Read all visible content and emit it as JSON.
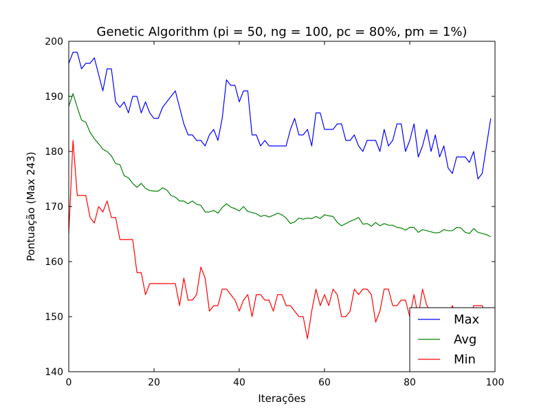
{
  "chart_data": {
    "type": "line",
    "title": "Genetic Algorithm (pi = 50, ng = 100, pc = 80%, pm = 1%)",
    "xlabel": "Iterações",
    "ylabel": "Pontuação (Max 243)",
    "xlim": [
      0,
      100
    ],
    "ylim": [
      140,
      200
    ],
    "xticks": [
      "0",
      "20",
      "40",
      "60",
      "80",
      "100"
    ],
    "yticks": [
      "140",
      "150",
      "160",
      "170",
      "180",
      "190",
      "200"
    ],
    "grid": false,
    "legend": "bottom-right",
    "x": [
      0,
      1,
      2,
      3,
      4,
      5,
      6,
      7,
      8,
      9,
      10,
      11,
      12,
      13,
      14,
      15,
      16,
      17,
      18,
      19,
      20,
      21,
      22,
      23,
      24,
      25,
      26,
      27,
      28,
      29,
      30,
      31,
      32,
      33,
      34,
      35,
      36,
      37,
      38,
      39,
      40,
      41,
      42,
      43,
      44,
      45,
      46,
      47,
      48,
      49,
      50,
      51,
      52,
      53,
      54,
      55,
      56,
      57,
      58,
      59,
      60,
      61,
      62,
      63,
      64,
      65,
      66,
      67,
      68,
      69,
      70,
      71,
      72,
      73,
      74,
      75,
      76,
      77,
      78,
      79,
      80,
      81,
      82,
      83,
      84,
      85,
      86,
      87,
      88,
      89,
      90,
      91,
      92,
      93,
      94,
      95,
      96,
      97,
      98,
      99
    ],
    "series": [
      {
        "name": "Max",
        "color": "#0000ff",
        "values": [
          196,
          198,
          198,
          195,
          196,
          196,
          197,
          194,
          191,
          195,
          195,
          189,
          188,
          189,
          187,
          190,
          190,
          187,
          189,
          187,
          186,
          186,
          188,
          189,
          190,
          191,
          188,
          185,
          183,
          183,
          182,
          182,
          181,
          183,
          184,
          182,
          186,
          193,
          192,
          192,
          189,
          191,
          191,
          183,
          183,
          181,
          182,
          181,
          181,
          181,
          181,
          181,
          184,
          186,
          183,
          183,
          184,
          181,
          187,
          187,
          184,
          184,
          184,
          185,
          185,
          182,
          182,
          183,
          181,
          180,
          182,
          182,
          182,
          180,
          184,
          181,
          182,
          185,
          185,
          180,
          182,
          185,
          179,
          181,
          184,
          180,
          183,
          179,
          181,
          177,
          176,
          179,
          179,
          179,
          178,
          180,
          175,
          176,
          181,
          186
        ]
      },
      {
        "name": "Avg",
        "color": "#008000",
        "values": [
          188.2,
          190.5,
          188,
          185.7,
          185.3,
          183.5,
          182.3,
          181.4,
          180.4,
          180,
          179.2,
          177.8,
          177.6,
          175.6,
          175.2,
          174.2,
          173.5,
          174.2,
          173.3,
          172.9,
          172.8,
          172.8,
          173.4,
          173.0,
          172,
          171.7,
          171,
          171,
          170.5,
          171,
          170.4,
          170.2,
          169,
          169,
          169.3,
          168.8,
          169.8,
          170.5,
          169.9,
          169.6,
          169.2,
          170,
          169.1,
          168.9,
          168.7,
          168.2,
          168.4,
          168.1,
          168.4,
          168.8,
          168.5,
          167.9,
          166.9,
          167.2,
          167.9,
          167.7,
          167.9,
          167.8,
          168.2,
          167.8,
          168.5,
          168.3,
          168.2,
          167.1,
          166.5,
          166.9,
          167.3,
          167.6,
          168.0,
          166.8,
          166.9,
          166.4,
          167.1,
          166.5,
          166.9,
          166.6,
          166.6,
          166.2,
          166.1,
          165.7,
          166.2,
          166.2,
          165.3,
          165.8,
          165.6,
          165.4,
          165.2,
          165.3,
          165.8,
          165.6,
          165.6,
          166.2,
          166.1,
          165.3,
          165.1,
          166.0,
          165.3,
          165.1,
          164.9,
          164.5
        ]
      },
      {
        "name": "Min",
        "color": "#ff0000",
        "values": [
          165,
          182,
          172,
          172,
          172,
          168,
          167,
          170,
          169,
          171,
          168,
          168,
          164,
          164,
          164,
          164,
          158,
          158,
          154,
          156,
          156,
          156,
          156,
          156,
          156,
          156,
          152,
          157,
          153,
          153,
          154,
          159,
          157,
          151,
          152,
          152,
          155,
          155,
          154,
          153,
          151,
          153,
          154,
          150,
          154,
          154,
          153,
          153,
          151,
          154,
          154,
          152,
          152,
          151,
          150,
          150,
          146,
          151,
          155,
          152,
          154,
          152,
          155,
          154,
          150,
          150,
          151,
          155,
          154,
          155,
          155,
          154,
          149,
          151,
          155,
          155,
          152,
          152,
          153,
          153,
          150,
          154,
          150,
          155,
          152,
          151,
          150,
          151,
          151,
          150,
          152,
          150,
          150,
          149,
          149,
          152,
          152,
          152,
          150,
          150
        ]
      }
    ]
  }
}
